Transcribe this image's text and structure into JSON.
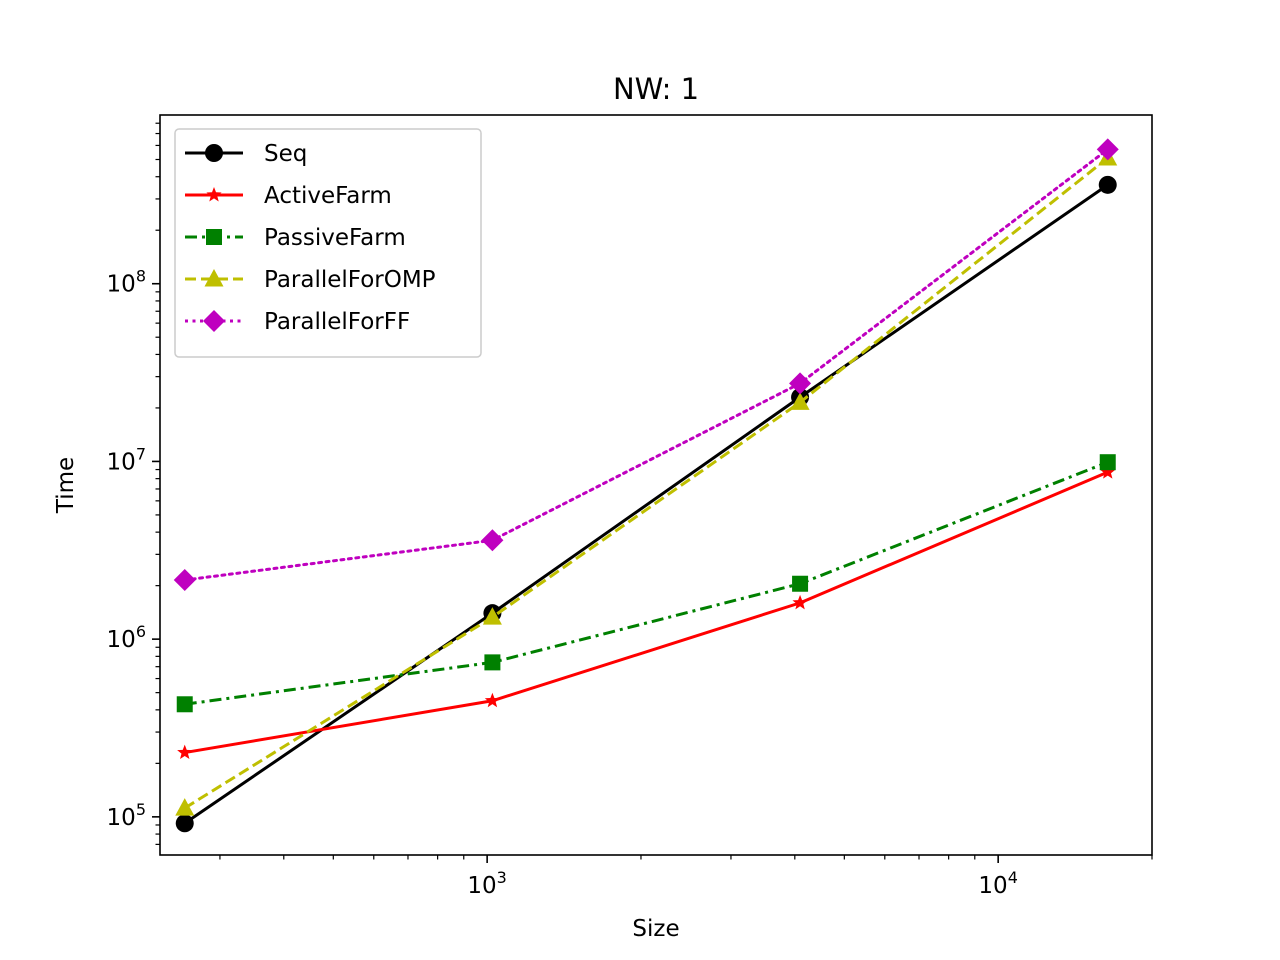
{
  "chart_data": {
    "type": "line",
    "title": "NW: 1",
    "xlabel": "Size",
    "ylabel": "Time",
    "xscale": "log",
    "yscale": "log",
    "xlim": [
      229,
      20000
    ],
    "ylim": [
      61000,
      890000000
    ],
    "x": [
      256,
      1024,
      4096,
      16384
    ],
    "x_ticks": [
      {
        "value": 1000,
        "base": "10",
        "exp": "3"
      },
      {
        "value": 10000,
        "base": "10",
        "exp": "4"
      }
    ],
    "y_ticks": [
      {
        "value": 100000,
        "base": "10",
        "exp": "5"
      },
      {
        "value": 1000000,
        "base": "10",
        "exp": "6"
      },
      {
        "value": 10000000,
        "base": "10",
        "exp": "7"
      },
      {
        "value": 100000000,
        "base": "10",
        "exp": "8"
      }
    ],
    "grid": false,
    "legend_position": "top-left",
    "series": [
      {
        "name": "Seq",
        "values": [
          92000,
          1400000,
          23000000,
          360000000
        ],
        "color": "#000000",
        "dash": "solid",
        "marker": "circle"
      },
      {
        "name": "ActiveFarm",
        "values": [
          230000,
          450000,
          1600000,
          8700000
        ],
        "color": "#ff0000",
        "dash": "solid",
        "marker": "star"
      },
      {
        "name": "PassiveFarm",
        "values": [
          430000,
          740000,
          2050000,
          9900000
        ],
        "color": "#008000",
        "dash": "dashdot",
        "marker": "square"
      },
      {
        "name": "ParallelForOMP",
        "values": [
          112000,
          1330000,
          21500000,
          510000000
        ],
        "color": "#bfbf00",
        "dash": "dashed",
        "marker": "triangle"
      },
      {
        "name": "ParallelForFF",
        "values": [
          2150000,
          3600000,
          27500000,
          570000000
        ],
        "color": "#bf00bf",
        "dash": "dotted",
        "marker": "diamond"
      }
    ]
  }
}
